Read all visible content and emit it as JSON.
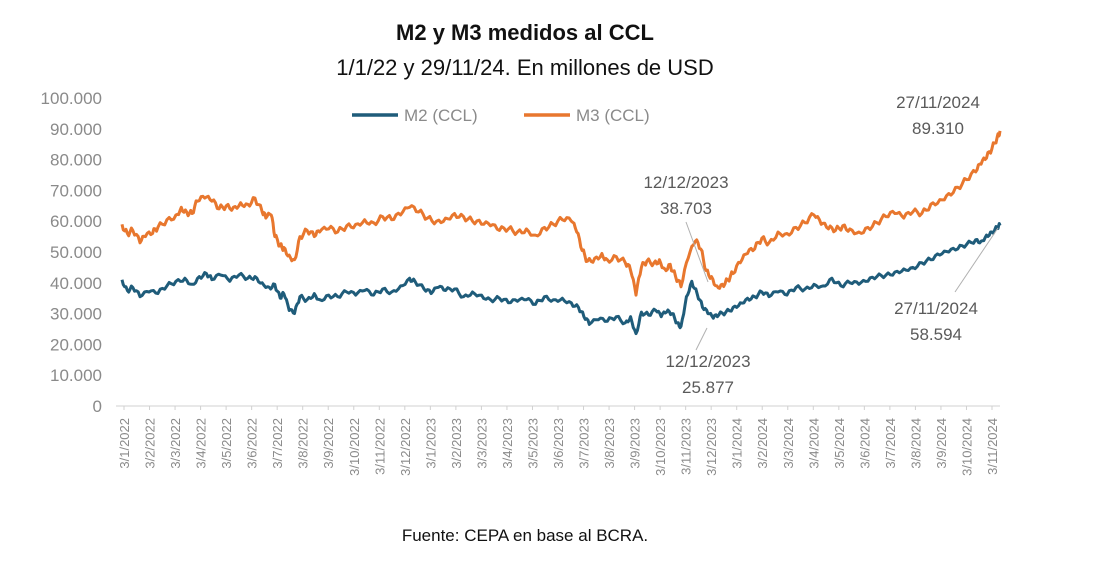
{
  "chart_data": {
    "type": "line",
    "title": "M2 y M3 medidos al CCL",
    "subtitle": "1/1/22 y 29/11/24. En millones de USD",
    "source": "Fuente: CEPA en base al BCRA.",
    "ylim": [
      0,
      100000
    ],
    "y_ticks": [
      "100.000",
      "90.000",
      "80.000",
      "70.000",
      "60.000",
      "50.000",
      "40.000",
      "30.000",
      "20.000",
      "10.000",
      "0"
    ],
    "x_ticks": [
      "3/1/2022",
      "3/2/2022",
      "3/3/2022",
      "3/4/2022",
      "3/5/2022",
      "3/6/2022",
      "3/7/2022",
      "3/8/2022",
      "3/9/2022",
      "3/10/2022",
      "3/11/2022",
      "3/12/2022",
      "3/1/2023",
      "3/2/2023",
      "3/3/2023",
      "3/4/2023",
      "3/5/2023",
      "3/6/2023",
      "3/7/2023",
      "3/8/2023",
      "3/9/2023",
      "3/10/2023",
      "3/11/2023",
      "3/12/2023",
      "3/1/2024",
      "3/2/2024",
      "3/3/2024",
      "3/4/2024",
      "3/5/2024",
      "3/6/2024",
      "3/7/2024",
      "3/8/2024",
      "3/9/2024",
      "3/10/2024",
      "3/11/2024"
    ],
    "x_range_months": [
      0,
      35
    ],
    "series": [
      {
        "name": "M2 (CCL)",
        "color": "#1f5c7a",
        "points": [
          [
            0,
            41000
          ],
          [
            0.3,
            37500
          ],
          [
            0.6,
            38500
          ],
          [
            1.0,
            35500
          ],
          [
            1.5,
            37000
          ],
          [
            2.0,
            36500
          ],
          [
            2.5,
            39000
          ],
          [
            3.0,
            40500
          ],
          [
            3.5,
            41500
          ],
          [
            3.9,
            39500
          ],
          [
            4.3,
            42000
          ],
          [
            4.7,
            43000
          ],
          [
            5.0,
            41000
          ],
          [
            5.5,
            42500
          ],
          [
            6.0,
            40500
          ],
          [
            6.5,
            42500
          ],
          [
            7.0,
            41500
          ],
          [
            7.4,
            42000
          ],
          [
            7.8,
            40000
          ],
          [
            8.2,
            38500
          ],
          [
            8.5,
            39500
          ],
          [
            8.8,
            35000
          ],
          [
            9.0,
            36500
          ],
          [
            9.3,
            31000
          ],
          [
            9.6,
            30000
          ],
          [
            9.9,
            35500
          ],
          [
            10.3,
            34500
          ],
          [
            10.7,
            36500
          ],
          [
            11.0,
            34500
          ],
          [
            11.5,
            36000
          ],
          [
            12.0,
            35500
          ],
          [
            12.5,
            37000
          ],
          [
            13.0,
            36000
          ],
          [
            13.5,
            37500
          ],
          [
            14.0,
            36000
          ],
          [
            14.5,
            38000
          ],
          [
            15.0,
            37000
          ],
          [
            15.5,
            39000
          ],
          [
            16.0,
            41500
          ],
          [
            16.3,
            40500
          ],
          [
            16.8,
            38000
          ],
          [
            17.2,
            36500
          ],
          [
            17.6,
            38500
          ],
          [
            18.0,
            37500
          ],
          [
            18.5,
            38000
          ],
          [
            19.0,
            35500
          ],
          [
            19.5,
            37000
          ],
          [
            20.0,
            36000
          ],
          [
            20.5,
            34500
          ],
          [
            21.0,
            35000
          ],
          [
            21.5,
            33500
          ],
          [
            22.0,
            34000
          ],
          [
            22.5,
            34500
          ],
          [
            23.0,
            33000
          ],
          [
            23.5,
            35500
          ],
          [
            24.0,
            34500
          ],
          [
            24.5,
            35000
          ],
          [
            25.0,
            33500
          ],
          [
            25.4,
            32000
          ],
          [
            25.7,
            29000
          ],
          [
            26.0,
            26500
          ],
          [
            26.5,
            28000
          ],
          [
            27.0,
            27500
          ],
          [
            27.5,
            29000
          ],
          [
            28.0,
            27000
          ],
          [
            28.3,
            29000
          ],
          [
            28.6,
            23500
          ],
          [
            28.9,
            30500
          ],
          [
            29.3,
            29500
          ],
          [
            29.7,
            31000
          ],
          [
            30.0,
            29000
          ],
          [
            30.3,
            30500
          ],
          [
            30.6,
            30000
          ],
          [
            30.9,
            27000
          ],
          [
            31.1,
            25877
          ],
          [
            31.4,
            35500
          ],
          [
            31.7,
            40500
          ],
          [
            32.0,
            36500
          ],
          [
            32.3,
            32000
          ],
          [
            32.6,
            30000
          ],
          [
            32.9,
            28500
          ],
          [
            33.2,
            29500
          ],
          [
            33.6,
            30500
          ],
          [
            34.0,
            32000
          ],
          [
            34.4,
            33500
          ],
          [
            34.8,
            35000
          ],
          [
            35.2,
            35500
          ],
          [
            35.6,
            37000
          ],
          [
            36.0,
            35500
          ],
          [
            36.5,
            37000
          ],
          [
            37.0,
            36000
          ],
          [
            37.5,
            38500
          ],
          [
            38.0,
            38000
          ],
          [
            38.5,
            39500
          ],
          [
            39.0,
            39000
          ],
          [
            39.5,
            41500
          ],
          [
            40.0,
            39000
          ],
          [
            40.5,
            40000
          ],
          [
            41.0,
            39500
          ],
          [
            41.5,
            40500
          ],
          [
            42.0,
            42000
          ],
          [
            42.5,
            42500
          ],
          [
            43.0,
            43500
          ],
          [
            43.5,
            44500
          ],
          [
            44.0,
            45000
          ],
          [
            44.5,
            46500
          ],
          [
            45.0,
            47500
          ],
          [
            45.5,
            49000
          ],
          [
            46.0,
            50000
          ],
          [
            46.5,
            51000
          ],
          [
            47.0,
            52500
          ],
          [
            47.5,
            54000
          ],
          [
            47.8,
            53500
          ],
          [
            48.1,
            55500
          ],
          [
            48.4,
            56500
          ],
          [
            48.7,
            58000
          ],
          [
            48.85,
            58594
          ]
        ]
      },
      {
        "name": "M3 (CCL)",
        "color": "#e8772e",
        "points": [
          [
            0,
            59000
          ],
          [
            0.3,
            56000
          ],
          [
            0.6,
            57000
          ],
          [
            1.0,
            53000
          ],
          [
            1.3,
            55000
          ],
          [
            1.7,
            56000
          ],
          [
            2.0,
            58000
          ],
          [
            2.5,
            60500
          ],
          [
            3.0,
            62000
          ],
          [
            3.3,
            64500
          ],
          [
            3.6,
            63000
          ],
          [
            3.9,
            62500
          ],
          [
            4.2,
            66500
          ],
          [
            4.6,
            67500
          ],
          [
            5.0,
            66500
          ],
          [
            5.4,
            64000
          ],
          [
            5.8,
            65000
          ],
          [
            6.2,
            64500
          ],
          [
            6.6,
            66000
          ],
          [
            7.0,
            65500
          ],
          [
            7.4,
            67500
          ],
          [
            7.8,
            63000
          ],
          [
            8.0,
            61000
          ],
          [
            8.3,
            62000
          ],
          [
            8.5,
            55000
          ],
          [
            8.8,
            52000
          ],
          [
            9.0,
            51500
          ],
          [
            9.3,
            49000
          ],
          [
            9.6,
            47500
          ],
          [
            9.9,
            55000
          ],
          [
            10.3,
            57000
          ],
          [
            10.7,
            55000
          ],
          [
            11.0,
            56500
          ],
          [
            11.5,
            57500
          ],
          [
            12.0,
            56500
          ],
          [
            12.5,
            58500
          ],
          [
            13.0,
            59000
          ],
          [
            13.5,
            60500
          ],
          [
            14.0,
            59500
          ],
          [
            14.5,
            61500
          ],
          [
            15.0,
            60500
          ],
          [
            15.5,
            62000
          ],
          [
            16.0,
            64500
          ],
          [
            16.5,
            63000
          ],
          [
            17.0,
            61000
          ],
          [
            17.5,
            60000
          ],
          [
            18.0,
            61000
          ],
          [
            18.5,
            62500
          ],
          [
            19.0,
            61500
          ],
          [
            19.5,
            60000
          ],
          [
            20.0,
            59000
          ],
          [
            20.5,
            58500
          ],
          [
            21.0,
            57000
          ],
          [
            21.5,
            57500
          ],
          [
            22.0,
            56500
          ],
          [
            22.5,
            57500
          ],
          [
            23.0,
            55500
          ],
          [
            23.5,
            58000
          ],
          [
            24.0,
            59000
          ],
          [
            24.5,
            60500
          ],
          [
            25.0,
            60000
          ],
          [
            25.3,
            56500
          ],
          [
            25.6,
            50500
          ],
          [
            25.9,
            47000
          ],
          [
            26.3,
            48000
          ],
          [
            26.7,
            49500
          ],
          [
            27.0,
            47500
          ],
          [
            27.5,
            48500
          ],
          [
            28.0,
            46500
          ],
          [
            28.3,
            44000
          ],
          [
            28.6,
            36000
          ],
          [
            28.9,
            45000
          ],
          [
            29.2,
            47000
          ],
          [
            29.6,
            46500
          ],
          [
            29.9,
            47500
          ],
          [
            30.2,
            44500
          ],
          [
            30.5,
            46000
          ],
          [
            30.8,
            42000
          ],
          [
            31.1,
            38703
          ],
          [
            31.5,
            48000
          ],
          [
            31.9,
            53500
          ],
          [
            32.2,
            51000
          ],
          [
            32.5,
            44000
          ],
          [
            32.8,
            42000
          ],
          [
            33.1,
            39000
          ],
          [
            33.4,
            39500
          ],
          [
            33.7,
            41000
          ],
          [
            34.0,
            43000
          ],
          [
            34.4,
            46500
          ],
          [
            34.8,
            49500
          ],
          [
            35.2,
            51000
          ],
          [
            35.6,
            54500
          ],
          [
            36.0,
            53000
          ],
          [
            36.5,
            56500
          ],
          [
            37.0,
            56000
          ],
          [
            37.5,
            58000
          ],
          [
            38.0,
            59500
          ],
          [
            38.5,
            62000
          ],
          [
            38.9,
            59000
          ],
          [
            39.3,
            57500
          ],
          [
            39.7,
            57000
          ],
          [
            40.1,
            58500
          ],
          [
            40.5,
            57500
          ],
          [
            41.0,
            56500
          ],
          [
            41.5,
            58000
          ],
          [
            42.0,
            59500
          ],
          [
            42.5,
            61500
          ],
          [
            43.0,
            62500
          ],
          [
            43.5,
            61000
          ],
          [
            44.0,
            63000
          ],
          [
            44.5,
            62500
          ],
          [
            45.0,
            65500
          ],
          [
            45.5,
            67000
          ],
          [
            46.0,
            69000
          ],
          [
            46.5,
            71000
          ],
          [
            47.0,
            73500
          ],
          [
            47.5,
            76000
          ],
          [
            47.8,
            78500
          ],
          [
            48.1,
            80500
          ],
          [
            48.4,
            83500
          ],
          [
            48.7,
            87500
          ],
          [
            48.85,
            89310
          ]
        ]
      }
    ],
    "annotations": [
      {
        "date": "12/12/2023",
        "value": "38.703",
        "series": "M3 (CCL)"
      },
      {
        "date": "12/12/2023",
        "value": "25.877",
        "series": "M2 (CCL)"
      },
      {
        "date": "27/11/2024",
        "value": "89.310",
        "series": "M3 (CCL)"
      },
      {
        "date": "27/11/2024",
        "value": "58.594",
        "series": "M2 (CCL)"
      }
    ]
  }
}
